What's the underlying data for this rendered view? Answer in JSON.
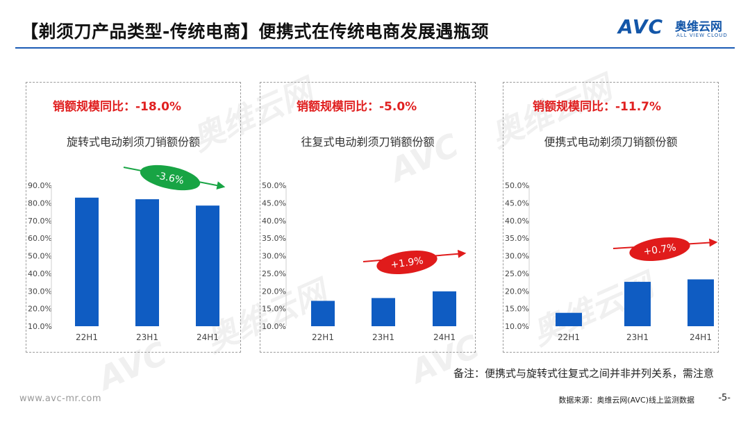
{
  "header": {
    "title": "【剃须刀产品类型-传统电商】便携式在传统电商发展遇瓶颈",
    "logo_avc": "AVC",
    "logo_cn": "奥维云网",
    "logo_en": "ALL VIEW CLOUD"
  },
  "watermark": {
    "cn": "奥维云网",
    "mark": "AVC",
    "en": "ALL VIEW CLOUD"
  },
  "colors": {
    "bar": "#0f5cc2",
    "title_rule": "#1a5bb5",
    "growth_text": "#e02020",
    "pill_down": "#18a444",
    "pill_up": "#e01b1b"
  },
  "panels": [
    {
      "growth_label": "销额规模同比：-18.0%",
      "pill": "-3.6%",
      "pill_color": "#18a444"
    },
    {
      "growth_label": "销额规模同比：-5.0%",
      "pill": "+1.9%",
      "pill_color": "#e01b1b"
    },
    {
      "growth_label": "销额规模同比：-11.7%",
      "pill": "+0.7%",
      "pill_color": "#e01b1b"
    }
  ],
  "chart_data": [
    {
      "type": "bar",
      "title": "旋转式电动剃须刀销额份额",
      "categories": [
        "22H1",
        "23H1",
        "24H1"
      ],
      "values": [
        83.0,
        82.1,
        78.5
      ],
      "ylim": [
        10,
        90
      ],
      "yticks": [
        "90.0%",
        "80.0%",
        "70.0%",
        "60.0%",
        "50.0%",
        "40.0%",
        "30.0%",
        "20.0%",
        "10.0%"
      ],
      "grid": false
    },
    {
      "type": "bar",
      "title": "往复式电动剃须刀销额份额",
      "categories": [
        "22H1",
        "23H1",
        "24H1"
      ],
      "values": [
        17.2,
        18.0,
        19.9
      ],
      "ylim": [
        10,
        50
      ],
      "yticks": [
        "50.0%",
        "45.0%",
        "40.0%",
        "35.0%",
        "30.0%",
        "25.0%",
        "20.0%",
        "15.0%",
        "10.0%"
      ],
      "grid": false
    },
    {
      "type": "bar",
      "title": "便携式电动剃须刀销额份额",
      "categories": [
        "22H1",
        "23H1",
        "24H1"
      ],
      "values": [
        13.8,
        22.6,
        23.3
      ],
      "ylim": [
        10,
        50
      ],
      "yticks": [
        "50.0%",
        "45.0%",
        "40.0%",
        "35.0%",
        "30.0%",
        "25.0%",
        "20.0%",
        "15.0%",
        "10.0%"
      ],
      "grid": false
    }
  ],
  "note": "备注：便携式与旋转式往复式之间并非并列关系，需注意",
  "footer": {
    "website": "www.avc-mr.com",
    "source": "数据来源：奥维云网(AVC)线上监测数据",
    "page": "-5-"
  }
}
